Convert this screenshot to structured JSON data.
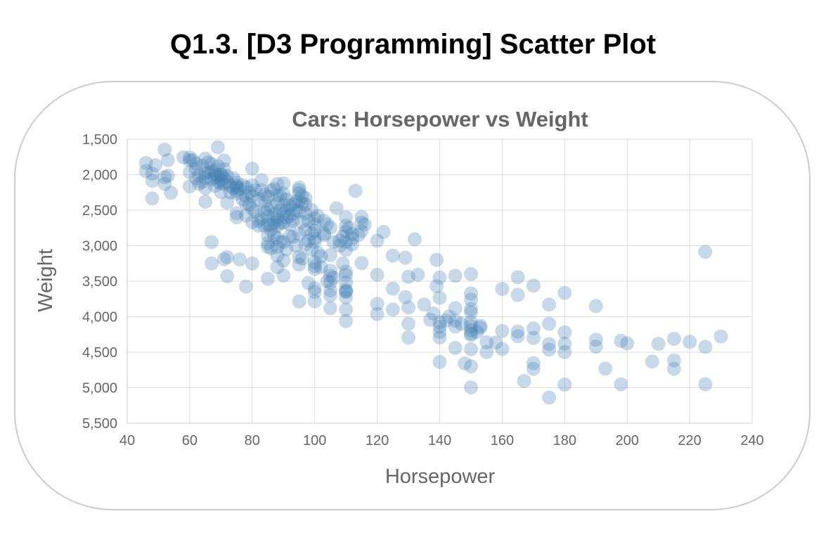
{
  "page": {
    "heading": "Q1.3. [D3 Programming] Scatter Plot"
  },
  "chart_data": {
    "type": "scatter",
    "title": "Cars: Horsepower vs Weight",
    "xlabel": "Horsepower",
    "ylabel": "Weight",
    "xlim": [
      40,
      240
    ],
    "ylim": [
      1500,
      5500
    ],
    "y_inverted": true,
    "x_ticks": [
      "40",
      "60",
      "80",
      "100",
      "120",
      "140",
      "160",
      "180",
      "200",
      "220",
      "240"
    ],
    "y_ticks": [
      "1,500",
      "2,000",
      "2,500",
      "3,000",
      "3,500",
      "4,000",
      "4,500",
      "5,000",
      "5,500"
    ],
    "x_tick_values": [
      40,
      60,
      80,
      100,
      120,
      140,
      160,
      180,
      200,
      220,
      240
    ],
    "y_tick_values": [
      1500,
      2000,
      2500,
      3000,
      3500,
      4000,
      4500,
      5000,
      5500
    ],
    "grid": true,
    "point_color": "#4682b4",
    "point_opacity": 0.3,
    "points": [
      [
        46,
        1835
      ],
      [
        46,
        1950
      ],
      [
        48,
        1985
      ],
      [
        48,
        2085
      ],
      [
        48,
        2335
      ],
      [
        49,
        1867
      ],
      [
        52,
        1649
      ],
      [
        52,
        2035
      ],
      [
        52,
        2130
      ],
      [
        53,
        1795
      ],
      [
        53,
        2015
      ],
      [
        54,
        2254
      ],
      [
        58,
        1755
      ],
      [
        60,
        1760
      ],
      [
        60,
        1800
      ],
      [
        60,
        1963
      ],
      [
        60,
        2164
      ],
      [
        61,
        1795
      ],
      [
        62,
        1845
      ],
      [
        62,
        2050
      ],
      [
        63,
        2125
      ],
      [
        64,
        1875
      ],
      [
        65,
        1773
      ],
      [
        65,
        1975
      ],
      [
        65,
        2045
      ],
      [
        65,
        2190
      ],
      [
        65,
        2380
      ],
      [
        66,
        1825
      ],
      [
        67,
        1850
      ],
      [
        67,
        1955
      ],
      [
        67,
        2065
      ],
      [
        67,
        2950
      ],
      [
        67,
        3250
      ],
      [
        68,
        1940
      ],
      [
        68,
        2045
      ],
      [
        68,
        2155
      ],
      [
        69,
        1613
      ],
      [
        69,
        2020
      ],
      [
        70,
        1990
      ],
      [
        70,
        2070
      ],
      [
        70,
        2120
      ],
      [
        70,
        2245
      ],
      [
        71,
        1800
      ],
      [
        71,
        1925
      ],
      [
        71,
        2130
      ],
      [
        71,
        3190
      ],
      [
        72,
        2100
      ],
      [
        72,
        2395
      ],
      [
        72,
        3160
      ],
      [
        72,
        3430
      ],
      [
        74,
        2190
      ],
      [
        75,
        2110
      ],
      [
        75,
        2230
      ],
      [
        75,
        2155
      ],
      [
        75,
        2265
      ],
      [
        75,
        2542
      ],
      [
        75,
        2600
      ],
      [
        76,
        3193
      ],
      [
        78,
        2300
      ],
      [
        78,
        2575
      ],
      [
        78,
        3575
      ],
      [
        80,
        1915
      ],
      [
        80,
        2150
      ],
      [
        80,
        2670
      ],
      [
        80,
        3250
      ],
      [
        81,
        2220
      ],
      [
        82,
        2720
      ],
      [
        83,
        2075
      ],
      [
        83,
        2219
      ],
      [
        84,
        2385
      ],
      [
        84,
        2525
      ],
      [
        84,
        2720
      ],
      [
        85,
        2310
      ],
      [
        85,
        2490
      ],
      [
        85,
        2588
      ],
      [
        85,
        2855
      ],
      [
        85,
        2965
      ],
      [
        85,
        3015
      ],
      [
        85,
        3465
      ],
      [
        86,
        2220
      ],
      [
        86,
        2711
      ],
      [
        86,
        3035
      ],
      [
        87,
        2672
      ],
      [
        88,
        2130
      ],
      [
        88,
        2290
      ],
      [
        88,
        2400
      ],
      [
        88,
        2640
      ],
      [
        88,
        2720
      ],
      [
        88,
        2890
      ],
      [
        88,
        3020
      ],
      [
        88,
        3139
      ],
      [
        88,
        3302
      ],
      [
        89,
        2500
      ],
      [
        90,
        2123
      ],
      [
        90,
        2265
      ],
      [
        90,
        2430
      ],
      [
        90,
        2678
      ],
      [
        90,
        2950
      ],
      [
        90,
        3210
      ],
      [
        90,
        3420
      ],
      [
        91,
        2500
      ],
      [
        92,
        2434
      ],
      [
        92,
        2585
      ],
      [
        92,
        2865
      ],
      [
        93,
        2550
      ],
      [
        94,
        2379
      ],
      [
        95,
        2215
      ],
      [
        95,
        2265
      ],
      [
        95,
        2375
      ],
      [
        95,
        2515
      ],
      [
        95,
        2835
      ],
      [
        95,
        3155
      ],
      [
        95,
        3265
      ],
      [
        95,
        3785
      ],
      [
        96,
        2300
      ],
      [
        96,
        2665
      ],
      [
        97,
        2330
      ],
      [
        97,
        2545
      ],
      [
        97,
        2984
      ],
      [
        98,
        2930
      ],
      [
        98,
        3525
      ],
      [
        100,
        2615
      ],
      [
        100,
        2789
      ],
      [
        100,
        2945
      ],
      [
        100,
        3233
      ],
      [
        100,
        3288
      ],
      [
        100,
        3329
      ],
      [
        100,
        3651
      ],
      [
        100,
        3781
      ],
      [
        102,
        3150
      ],
      [
        103,
        2830
      ],
      [
        105,
        2745
      ],
      [
        105,
        3135
      ],
      [
        105,
        3353
      ],
      [
        105,
        3425
      ],
      [
        105,
        3520
      ],
      [
        105,
        3630
      ],
      [
        105,
        3880
      ],
      [
        107,
        2472
      ],
      [
        108,
        2930
      ],
      [
        110,
        2600
      ],
      [
        110,
        2720
      ],
      [
        110,
        2800
      ],
      [
        110,
        2945
      ],
      [
        110,
        3060
      ],
      [
        110,
        3365
      ],
      [
        110,
        3415
      ],
      [
        110,
        3520
      ],
      [
        110,
        3620
      ],
      [
        110,
        3645
      ],
      [
        110,
        3730
      ],
      [
        110,
        3900
      ],
      [
        110,
        4060
      ],
      [
        112,
        2835
      ],
      [
        112,
        2900
      ],
      [
        113,
        2228
      ],
      [
        115,
        2595
      ],
      [
        115,
        2675
      ],
      [
        115,
        2795
      ],
      [
        115,
        3245
      ],
      [
        120,
        2930
      ],
      [
        120,
        3410
      ],
      [
        120,
        3820
      ],
      [
        120,
        3962
      ],
      [
        122,
        2807
      ],
      [
        125,
        3140
      ],
      [
        125,
        3605
      ],
      [
        125,
        3900
      ],
      [
        129,
        3169
      ],
      [
        129,
        3725
      ],
      [
        130,
        3440
      ],
      [
        130,
        3870
      ],
      [
        130,
        4100
      ],
      [
        130,
        4295
      ],
      [
        132,
        2910
      ],
      [
        133,
        3410
      ],
      [
        135,
        3830
      ],
      [
        137,
        4042
      ],
      [
        138,
        3955
      ],
      [
        139,
        3570
      ],
      [
        140,
        3449
      ],
      [
        140,
        3735
      ],
      [
        140,
        4080
      ],
      [
        140,
        4141
      ],
      [
        140,
        4215
      ],
      [
        140,
        4294
      ],
      [
        140,
        4638
      ],
      [
        142,
        4054
      ],
      [
        145,
        3425
      ],
      [
        145,
        3880
      ],
      [
        145,
        4055
      ],
      [
        145,
        4140
      ],
      [
        145,
        4440
      ],
      [
        148,
        4657
      ],
      [
        150,
        3399
      ],
      [
        150,
        3672
      ],
      [
        150,
        3761
      ],
      [
        150,
        3892
      ],
      [
        150,
        3940
      ],
      [
        150,
        4077
      ],
      [
        150,
        4135
      ],
      [
        150,
        4190
      ],
      [
        150,
        4237
      ],
      [
        150,
        4257
      ],
      [
        150,
        4457
      ],
      [
        150,
        4699
      ],
      [
        150,
        4997
      ],
      [
        152,
        4215
      ],
      [
        153,
        4154
      ],
      [
        153,
        4129
      ],
      [
        155,
        4360
      ],
      [
        155,
        4498
      ],
      [
        158,
        4363
      ],
      [
        160,
        3609
      ],
      [
        160,
        4456
      ],
      [
        165,
        3445
      ],
      [
        165,
        3693
      ],
      [
        165,
        4209
      ],
      [
        165,
        4274
      ],
      [
        167,
        4906
      ],
      [
        170,
        3563
      ],
      [
        170,
        4165
      ],
      [
        170,
        4654
      ],
      [
        170,
        4735
      ],
      [
        175,
        3830
      ],
      [
        175,
        4100
      ],
      [
        175,
        4385
      ],
      [
        175,
        4464
      ],
      [
        175,
        5140
      ],
      [
        180,
        3664
      ],
      [
        180,
        4220
      ],
      [
        180,
        4380
      ],
      [
        180,
        4499
      ],
      [
        180,
        4955
      ],
      [
        190,
        3850
      ],
      [
        190,
        4325
      ],
      [
        190,
        4422
      ],
      [
        193,
        4732
      ],
      [
        198,
        4341
      ],
      [
        198,
        4952
      ],
      [
        200,
        4376
      ],
      [
        208,
        4633
      ],
      [
        210,
        4382
      ],
      [
        215,
        4312
      ],
      [
        215,
        4615
      ],
      [
        215,
        4735
      ],
      [
        220,
        4354
      ],
      [
        225,
        3086
      ],
      [
        225,
        4425
      ],
      [
        225,
        4951
      ],
      [
        230,
        4278
      ],
      [
        68,
        2000
      ],
      [
        69,
        2100
      ],
      [
        70,
        2000
      ],
      [
        71,
        2050
      ],
      [
        72,
        2020
      ],
      [
        73,
        2150
      ],
      [
        74,
        2050
      ],
      [
        76,
        2200
      ],
      [
        77,
        2150
      ],
      [
        78,
        2180
      ],
      [
        79,
        2250
      ],
      [
        80,
        2300
      ],
      [
        82,
        2350
      ],
      [
        84,
        2280
      ],
      [
        86,
        2450
      ],
      [
        87,
        2550
      ],
      [
        88,
        2600
      ],
      [
        89,
        2680
      ],
      [
        90,
        2550
      ],
      [
        91,
        2600
      ],
      [
        92,
        2700
      ],
      [
        93,
        2650
      ],
      [
        94,
        2500
      ],
      [
        96,
        2400
      ],
      [
        97,
        2780
      ],
      [
        98,
        2650
      ],
      [
        99,
        2830
      ],
      [
        100,
        2700
      ],
      [
        100,
        2900
      ],
      [
        101,
        3100
      ],
      [
        103,
        2850
      ],
      [
        104,
        2700
      ],
      [
        106,
        2950
      ],
      [
        108,
        3000
      ],
      [
        109,
        2870
      ],
      [
        111,
        2750
      ],
      [
        112,
        2980
      ],
      [
        114,
        2850
      ],
      [
        116,
        2700
      ],
      [
        62,
        1920
      ],
      [
        63,
        2020
      ],
      [
        64,
        2100
      ],
      [
        66,
        1970
      ],
      [
        69,
        1880
      ],
      [
        73,
        2250
      ],
      [
        75,
        2180
      ],
      [
        77,
        2350
      ],
      [
        79,
        2420
      ],
      [
        81,
        2520
      ],
      [
        83,
        2620
      ],
      [
        86,
        2780
      ],
      [
        87,
        2850
      ],
      [
        89,
        2950
      ],
      [
        91,
        3050
      ],
      [
        93,
        2880
      ],
      [
        94,
        3000
      ],
      [
        96,
        3180
      ],
      [
        99,
        3050
      ],
      [
        102,
        3300
      ],
      [
        104,
        3500
      ],
      [
        106,
        3450
      ],
      [
        109,
        3250
      ],
      [
        78,
        2400
      ],
      [
        80,
        2480
      ],
      [
        82,
        2650
      ],
      [
        85,
        2700
      ],
      [
        87,
        2200
      ],
      [
        89,
        2300
      ],
      [
        91,
        2350
      ],
      [
        93,
        2420
      ],
      [
        95,
        2180
      ],
      [
        97,
        2420
      ],
      [
        99,
        2500
      ],
      [
        101,
        2580
      ],
      [
        103,
        2650
      ],
      [
        100,
        3600
      ],
      [
        105,
        3700
      ],
      [
        110,
        3650
      ],
      [
        139,
        3200
      ],
      [
        143,
        4000
      ],
      [
        147,
        4100
      ],
      [
        160,
        4200
      ],
      [
        170,
        4300
      ]
    ]
  }
}
